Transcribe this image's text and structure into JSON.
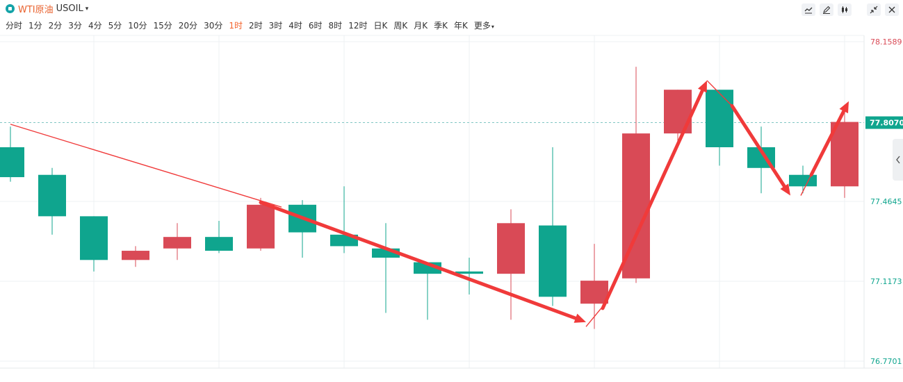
{
  "header": {
    "name": "WTI原油",
    "symbol": "USOIL",
    "caret": "▾"
  },
  "periods": [
    {
      "label": "分时",
      "active": false
    },
    {
      "label": "1分",
      "active": false
    },
    {
      "label": "2分",
      "active": false
    },
    {
      "label": "3分",
      "active": false
    },
    {
      "label": "4分",
      "active": false
    },
    {
      "label": "5分",
      "active": false
    },
    {
      "label": "10分",
      "active": false
    },
    {
      "label": "15分",
      "active": false
    },
    {
      "label": "20分",
      "active": false
    },
    {
      "label": "30分",
      "active": false
    },
    {
      "label": "1时",
      "active": true
    },
    {
      "label": "2时",
      "active": false
    },
    {
      "label": "3时",
      "active": false
    },
    {
      "label": "4时",
      "active": false
    },
    {
      "label": "6时",
      "active": false
    },
    {
      "label": "8时",
      "active": false
    },
    {
      "label": "12时",
      "active": false
    },
    {
      "label": "日K",
      "active": false
    },
    {
      "label": "周K",
      "active": false
    },
    {
      "label": "月K",
      "active": false
    },
    {
      "label": "季K",
      "active": false
    },
    {
      "label": "年K",
      "active": false
    },
    {
      "label": "更多",
      "active": false,
      "caret": "▾"
    }
  ],
  "tools": [
    "line-tool-icon",
    "draw-tool-icon",
    "candle-style-icon",
    "collapse-icon",
    "close-icon"
  ],
  "colors": {
    "up": "#d94a56",
    "down": "#0fa58e",
    "arrow": "#f03a3a",
    "current_price_bg": "#0fa58e",
    "grid": "#eef0f3",
    "dashed": "#7fc6c2"
  },
  "chart_data": {
    "type": "candlestick",
    "ylim": [
      76.7701,
      78.1589
    ],
    "y_ticks": [
      {
        "label": "78.1589",
        "value": 78.1589,
        "color": "#d94a56"
      },
      {
        "label": "77.4645",
        "value": 77.4645,
        "color": "#0fa58e"
      },
      {
        "label": "77.1173",
        "value": 77.1173,
        "color": "#0fa58e"
      },
      {
        "label": "76.7701",
        "value": 76.7701,
        "color": "#0fa58e"
      }
    ],
    "current_price": {
      "label": "77.8070",
      "value": 77.807
    },
    "candles": [
      {
        "open": 77.7,
        "close": 77.57,
        "high": 77.79,
        "low": 77.55
      },
      {
        "open": 77.58,
        "close": 77.4,
        "high": 77.61,
        "low": 77.32
      },
      {
        "open": 77.4,
        "close": 77.21,
        "high": 77.4,
        "low": 77.16
      },
      {
        "open": 77.21,
        "close": 77.25,
        "high": 77.27,
        "low": 77.18
      },
      {
        "open": 77.26,
        "close": 77.31,
        "high": 77.37,
        "low": 77.21
      },
      {
        "open": 77.31,
        "close": 77.25,
        "high": 77.38,
        "low": 77.24
      },
      {
        "open": 77.26,
        "close": 77.45,
        "high": 77.48,
        "low": 77.25
      },
      {
        "open": 77.45,
        "close": 77.33,
        "high": 77.47,
        "low": 77.22
      },
      {
        "open": 77.32,
        "close": 77.27,
        "high": 77.53,
        "low": 77.24
      },
      {
        "open": 77.26,
        "close": 77.22,
        "high": 77.37,
        "low": 76.98
      },
      {
        "open": 77.2,
        "close": 77.15,
        "high": 77.2,
        "low": 76.95
      },
      {
        "open": 77.16,
        "close": 77.15,
        "high": 77.22,
        "low": 77.06
      },
      {
        "open": 77.15,
        "close": 77.37,
        "high": 77.43,
        "low": 76.95
      },
      {
        "open": 77.36,
        "close": 77.05,
        "high": 77.7,
        "low": 77.01
      },
      {
        "open": 77.02,
        "close": 77.12,
        "high": 77.28,
        "low": 76.91
      },
      {
        "open": 77.13,
        "close": 77.76,
        "high": 78.05,
        "low": 77.11
      },
      {
        "open": 77.76,
        "close": 77.95,
        "high": 77.95,
        "low": 77.71
      },
      {
        "open": 77.95,
        "close": 77.7,
        "high": 77.95,
        "low": 77.62
      },
      {
        "open": 77.7,
        "close": 77.61,
        "high": 77.79,
        "low": 77.5
      },
      {
        "open": 77.58,
        "close": 77.53,
        "high": 77.62,
        "low": 77.5
      },
      {
        "open": 77.53,
        "close": 77.81,
        "high": 77.88,
        "low": 77.48
      }
    ],
    "annotations": [
      {
        "type": "thin-line",
        "from": [
          0,
          77.8
        ],
        "to": [
          6.5,
          77.44
        ]
      },
      {
        "type": "thick-arrow",
        "from": [
          6.0,
          77.46
        ],
        "to": [
          13.8,
          76.94
        ]
      },
      {
        "type": "thin-line",
        "from": [
          13.8,
          76.92
        ],
        "to": [
          14.3,
          77.03
        ]
      },
      {
        "type": "thick-arrow",
        "from": [
          14.2,
          77.0
        ],
        "to": [
          16.7,
          77.99
        ]
      },
      {
        "type": "thin-line",
        "from": [
          16.7,
          77.99
        ],
        "to": [
          17.3,
          77.88
        ]
      },
      {
        "type": "thick-arrow",
        "from": [
          17.3,
          77.88
        ],
        "to": [
          18.7,
          77.49
        ]
      },
      {
        "type": "thin-line",
        "from": [
          18.95,
          77.49
        ],
        "to": [
          19.2,
          77.58
        ]
      },
      {
        "type": "thick-arrow",
        "from": [
          19.2,
          77.58
        ],
        "to": [
          20.1,
          77.9
        ]
      }
    ]
  }
}
